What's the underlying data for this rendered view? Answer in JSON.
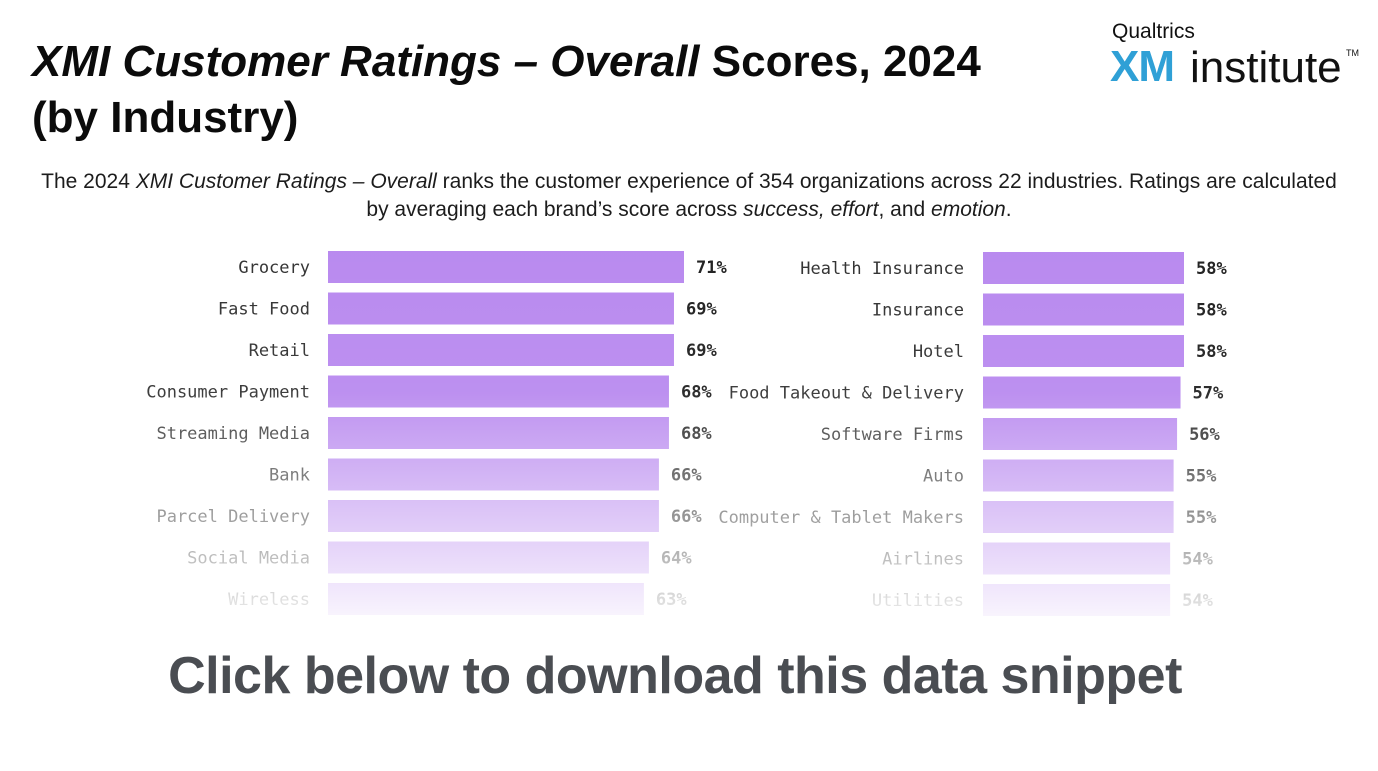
{
  "title": {
    "part1": "XMI Customer Ratings – Overall",
    "part2": " Scores, 2024",
    "line2": "(by Industry)"
  },
  "logo": {
    "top": "Qualtrics",
    "xm": "XM",
    "institute": "institute",
    "tm": "TM"
  },
  "subtitle": {
    "p1": "The 2024 ",
    "p2": "XMI Customer Ratings – Overall",
    "p3": " ranks the customer experience of 354 organizations across 22 industries. Ratings are calculated by averaging each brand’s score across ",
    "p4": "success, effort",
    "p5": ", and ",
    "p6": "emotion",
    "p7": "."
  },
  "cta": "Click below to download this data snippet",
  "colors": {
    "bar": "#b98aef",
    "label": "#333333",
    "value": "#222222"
  },
  "chart_data": [
    {
      "type": "bar",
      "orientation": "horizontal",
      "categories": [
        "Grocery",
        "Fast Food",
        "Retail",
        "Consumer Payment",
        "Streaming Media",
        "Bank",
        "Parcel Delivery",
        "Social Media",
        "Wireless"
      ],
      "values": [
        71,
        69,
        69,
        68,
        68,
        66,
        66,
        64,
        63
      ],
      "labels": [
        "71%",
        "69%",
        "69%",
        "68%",
        "68%",
        "66%",
        "66%",
        "64%",
        "63%"
      ],
      "unit": "%"
    },
    {
      "type": "bar",
      "orientation": "horizontal",
      "categories": [
        "Health Insurance",
        "Insurance",
        "Hotel",
        "Food Takeout & Delivery",
        "Software Firms",
        "Auto",
        "Computer & Tablet Makers",
        "Airlines",
        "Utilities"
      ],
      "values": [
        58,
        58,
        58,
        57,
        56,
        55,
        55,
        54,
        54
      ],
      "labels": [
        "58%",
        "58%",
        "58%",
        "57%",
        "56%",
        "55%",
        "55%",
        "54%",
        "54%"
      ],
      "unit": "%"
    }
  ]
}
